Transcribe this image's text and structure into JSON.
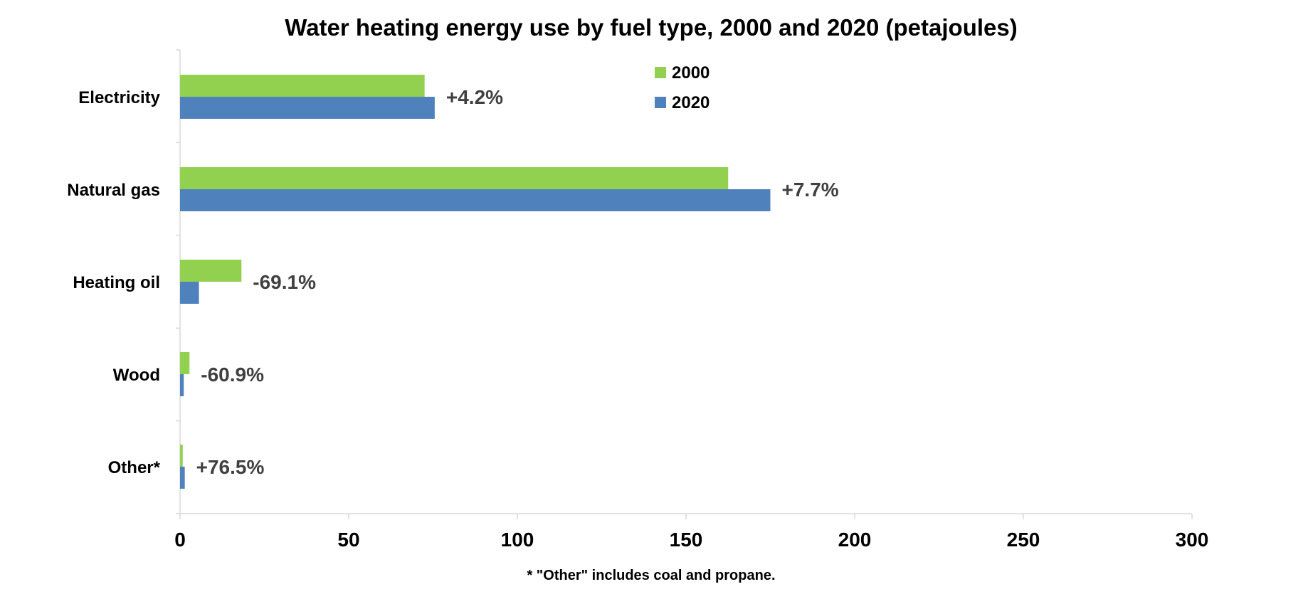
{
  "chart_data": {
    "type": "bar",
    "orientation": "horizontal",
    "title": "Water heating energy use by fuel type, 2000 and 2020 (petajoules)",
    "categories": [
      "Electricity",
      "Natural gas",
      "Heating oil",
      "Wood",
      "Other*"
    ],
    "series": [
      {
        "name": "2000",
        "color": "#92d050",
        "values": [
          72.5,
          162.5,
          18.2,
          2.8,
          0.8
        ]
      },
      {
        "name": "2020",
        "color": "#4f81bd",
        "values": [
          75.5,
          175.0,
          5.6,
          1.1,
          1.4
        ]
      }
    ],
    "data_labels": [
      "+4.2%",
      "+7.7%",
      "-69.1%",
      "-60.9%",
      "+76.5%"
    ],
    "xlim": [
      0,
      300
    ],
    "xticks": [
      "0",
      "50",
      "100",
      "150",
      "200",
      "250",
      "300"
    ],
    "xlabel": "",
    "ylabel": "",
    "grid": false,
    "legend_position": "top-center",
    "footnote": "* \"Other\" includes coal and propane."
  }
}
